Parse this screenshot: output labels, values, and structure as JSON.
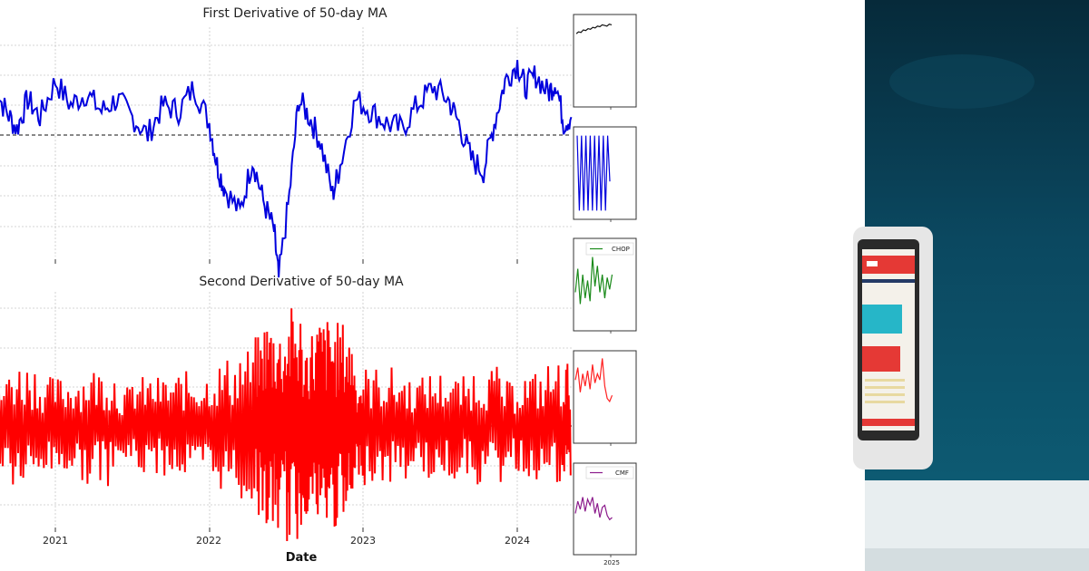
{
  "chart_data": [
    {
      "type": "line",
      "title": "First Derivative of 50-day MA",
      "xlabel": "",
      "ylabel": "",
      "x_ticks": [
        "2021",
        "2022",
        "2023",
        "2024"
      ],
      "x_range": [
        2020.6,
        2024.35
      ],
      "ylim": [
        -3,
        2
      ],
      "reference_line": 0,
      "grid": true,
      "series": [
        {
          "name": "first_derivative",
          "color": "#0000dd",
          "x": [
            2020.6,
            2020.68,
            2020.75,
            2020.82,
            2020.9,
            2021.0,
            2021.1,
            2021.2,
            2021.3,
            2021.4,
            2021.5,
            2021.6,
            2021.7,
            2021.8,
            2021.9,
            2022.0,
            2022.05,
            2022.1,
            2022.2,
            2022.28,
            2022.35,
            2022.42,
            2022.45,
            2022.52,
            2022.58,
            2022.65,
            2022.72,
            2022.8,
            2022.85,
            2022.95,
            2023.05,
            2023.15,
            2023.25,
            2023.35,
            2023.45,
            2023.55,
            2023.62,
            2023.7,
            2023.78,
            2023.85,
            2023.92,
            2024.0,
            2024.05,
            2024.12,
            2024.2,
            2024.25,
            2024.3,
            2024.35
          ],
          "y": [
            0.8,
            0.4,
            0.1,
            0.6,
            0.3,
            0.9,
            0.5,
            0.7,
            0.4,
            0.6,
            0.3,
            0.0,
            0.5,
            0.4,
            0.8,
            0.2,
            -0.5,
            -0.9,
            -1.3,
            -0.4,
            -1.1,
            -1.6,
            -2.4,
            -1.0,
            0.6,
            0.3,
            -0.1,
            -1.0,
            -0.5,
            0.6,
            0.4,
            0.2,
            0.1,
            0.5,
            0.8,
            0.6,
            0.2,
            -0.4,
            -0.6,
            0.2,
            0.9,
            1.2,
            0.8,
            1.0,
            0.7,
            0.9,
            0.2,
            0.3
          ]
        }
      ]
    },
    {
      "type": "line",
      "title": "Second Derivative of 50-day MA",
      "xlabel": "Date",
      "ylabel": "",
      "x_ticks": [
        "2021",
        "2022",
        "2023",
        "2024"
      ],
      "x_range": [
        2020.6,
        2024.35
      ],
      "ylim": [
        -3,
        3
      ],
      "reference_line": 0,
      "grid": true,
      "series": [
        {
          "name": "second_derivative",
          "color": "#ff0000",
          "x": [
            2020.6,
            2020.7,
            2020.8,
            2020.9,
            2021.0,
            2021.1,
            2021.2,
            2021.3,
            2021.4,
            2021.5,
            2021.6,
            2021.7,
            2021.8,
            2021.9,
            2022.0,
            2022.1,
            2022.2,
            2022.3,
            2022.35,
            2022.4,
            2022.45,
            2022.5,
            2022.55,
            2022.6,
            2022.65,
            2022.7,
            2022.75,
            2022.8,
            2022.85,
            2022.9,
            2022.95,
            2023.0,
            2023.1,
            2023.2,
            2023.3,
            2023.4,
            2023.5,
            2023.6,
            2023.7,
            2023.8,
            2023.9,
            2024.0,
            2024.1,
            2024.2,
            2024.3,
            2024.35
          ],
          "y": [
            0.9,
            -1.0,
            1.3,
            -0.8,
            1.0,
            -0.9,
            1.1,
            -1.2,
            0.8,
            -0.7,
            1.0,
            -1.0,
            0.9,
            -1.1,
            0.7,
            -1.3,
            1.4,
            -1.6,
            1.8,
            -2.2,
            2.0,
            -1.2,
            2.4,
            -1.8,
            1.6,
            -2.0,
            2.2,
            -1.5,
            2.1,
            -1.9,
            1.0,
            -0.8,
            1.2,
            -1.1,
            0.9,
            -1.0,
            1.1,
            -0.9,
            1.0,
            -1.2,
            0.8,
            -0.9,
            1.1,
            -1.0,
            -1.3,
            0.3
          ]
        }
      ]
    },
    {
      "type": "line",
      "title": "",
      "series": [
        {
          "name": "price",
          "color": "#111111",
          "values": [
            0.2,
            0.35,
            0.3,
            0.5,
            0.45,
            0.6,
            0.55,
            0.7,
            0.65,
            0.8,
            0.75,
            0.9,
            0.85,
            0.8,
            0.95,
            0.9
          ]
        }
      ]
    },
    {
      "type": "line",
      "title": "",
      "series": [
        {
          "name": "signal",
          "color": "#0000dd",
          "values": [
            0.95,
            0.05,
            0.95,
            0.05,
            0.95,
            0.05,
            0.95,
            0.05,
            0.95,
            0.05,
            0.95,
            0.05,
            0.95,
            0.05,
            0.95,
            0.4
          ]
        }
      ]
    },
    {
      "type": "line",
      "title": "",
      "legend": [
        "CHOP"
      ],
      "series": [
        {
          "name": "CHOP",
          "color": "#1a8a1a",
          "values": [
            0.3,
            0.7,
            0.1,
            0.6,
            0.2,
            0.5,
            0.15,
            0.9,
            0.4,
            0.75,
            0.3,
            0.6,
            0.2,
            0.55,
            0.35,
            0.6
          ]
        }
      ]
    },
    {
      "type": "line",
      "title": "",
      "series": [
        {
          "name": "indicator",
          "color": "#ff2020",
          "values": [
            0.6,
            0.8,
            0.4,
            0.7,
            0.5,
            0.75,
            0.45,
            0.85,
            0.55,
            0.7,
            0.6,
            0.95,
            0.5,
            0.3,
            0.25,
            0.35
          ]
        }
      ]
    },
    {
      "type": "line",
      "title": "",
      "legend": [
        "CMF"
      ],
      "x_ticks": [
        "2025"
      ],
      "series": [
        {
          "name": "CMF",
          "color": "#8b1a8b",
          "values": [
            0.3,
            0.6,
            0.4,
            0.7,
            0.35,
            0.65,
            0.5,
            0.7,
            0.3,
            0.55,
            0.2,
            0.45,
            0.5,
            0.25,
            0.15,
            0.2
          ]
        }
      ]
    }
  ],
  "side_panel": {
    "colors": {
      "bg_top": "#062a3a",
      "bg_mid": "#0b4860",
      "bg_bottom": "#0d5a72",
      "floor": "#e8eef0",
      "device": "#e6e6e6",
      "screen": "#2a2a2a",
      "bar_red": "#e53935",
      "bar_cyan": "#26b6c8",
      "line_yellow": "#e8d9a0"
    }
  }
}
